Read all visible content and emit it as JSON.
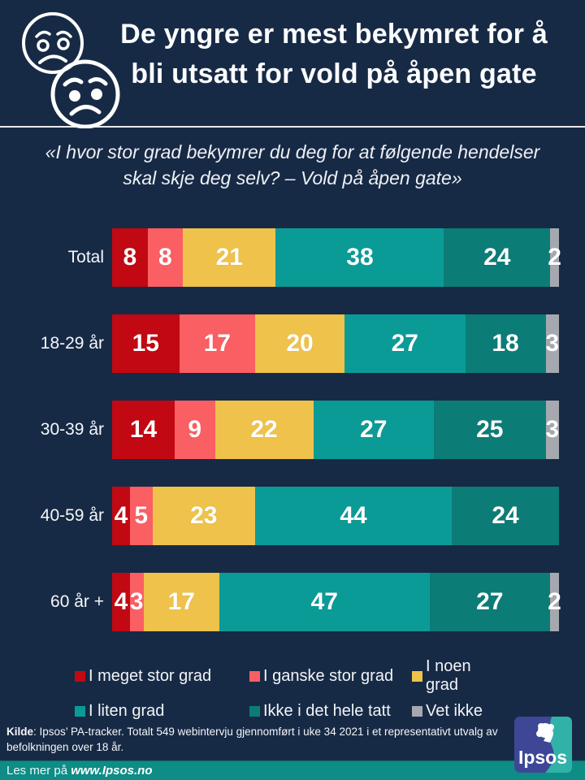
{
  "header": {
    "title_line1": "De yngre er mest bekymret for å",
    "title_line2": "bli utsatt for vold på åpen gate",
    "subtitle": "«I hvor stor grad bekymrer du deg for at følgende hendelser skal skje deg selv? – Vold på åpen gate»"
  },
  "colors": {
    "background": "#172a45",
    "divider": "#e8e9ec",
    "meget_stor": "#c10813",
    "ganske_stor": "#fa5f63",
    "noen_grad": "#eec24b",
    "liten_grad": "#0b9b97",
    "ikke_i_det_hele": "#0c7c77",
    "vet_ikke": "#a5a9af",
    "bottom_strip": "#0e8c86",
    "logo_blue": "#3d4796",
    "logo_teal": "#30b2a9"
  },
  "chart_data": {
    "type": "bar",
    "stacked": true,
    "orientation": "horizontal",
    "unit": "percent",
    "grid": false,
    "legend_position": "bottom",
    "categories": [
      "Total",
      "18-29 år",
      "30-39 år",
      "40-59 år",
      "60 år +"
    ],
    "series": [
      {
        "name": "I meget stor grad",
        "color": "#c10813",
        "values": [
          8,
          15,
          14,
          4,
          4
        ]
      },
      {
        "name": "I ganske stor grad",
        "color": "#fa5f63",
        "values": [
          8,
          17,
          9,
          5,
          3
        ]
      },
      {
        "name": "I noen grad",
        "color": "#eec24b",
        "values": [
          21,
          20,
          22,
          23,
          17
        ]
      },
      {
        "name": "I liten grad",
        "color": "#0b9b97",
        "values": [
          38,
          27,
          27,
          44,
          47
        ]
      },
      {
        "name": "Ikke i det hele tatt",
        "color": "#0c7c77",
        "values": [
          24,
          18,
          25,
          24,
          27
        ]
      },
      {
        "name": "Vet ikke",
        "color": "#a5a9af",
        "values": [
          2,
          3,
          3,
          0,
          2
        ]
      }
    ]
  },
  "footer": {
    "source_bold": "Kilde",
    "source_rest": ": Ipsos’ PA-tracker. Totalt 549 webintervju gjennomført i uke 34 2021 i et representativt utvalg av befolkningen over 18 år.",
    "logo_text": "Ipsos"
  },
  "bottom_bar": {
    "prefix": "Les mer på ",
    "link": "www.Ipsos.no"
  }
}
